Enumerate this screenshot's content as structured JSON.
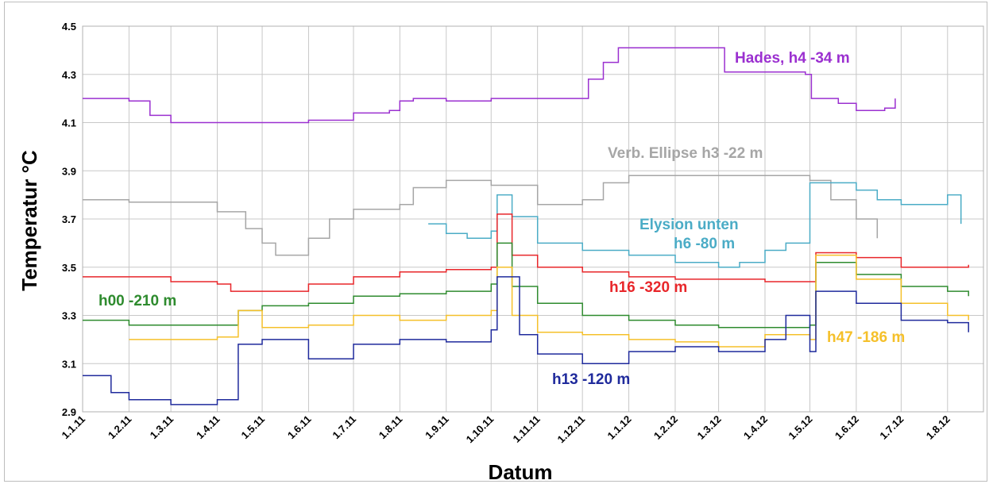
{
  "chart_data": {
    "type": "line",
    "xlabel": "Datum",
    "ylabel": "Temperatur °C",
    "ylim": [
      2.9,
      4.5
    ],
    "yticks": [
      "2.9",
      "3.1",
      "3.3",
      "3.5",
      "3.7",
      "3.9",
      "4.1",
      "4.3",
      "4.5"
    ],
    "xticks": [
      "1.1.11",
      "1.2.11",
      "1.3.11",
      "1.4.11",
      "1.5.11",
      "1.6.11",
      "1.7.11",
      "1.8.11",
      "1.9.11",
      "1.10.11",
      "1.11.11",
      "1.12.11",
      "1.1.12",
      "1.2.12",
      "1.3.12",
      "1.4.12",
      "1.5.12",
      "1.6.12",
      "1.7.12",
      "1.8.12"
    ],
    "grid": true,
    "series": [
      {
        "label": "Hades, h4 -34 m",
        "color": "#9b30d0",
        "points": [
          [
            "1.1.11",
            4.2
          ],
          [
            "15.1.11",
            4.2
          ],
          [
            "1.2.11",
            4.19
          ],
          [
            "15.2.11",
            4.13
          ],
          [
            "1.3.11",
            4.1
          ],
          [
            "1.4.11",
            4.1
          ],
          [
            "1.5.11",
            4.1
          ],
          [
            "1.6.11",
            4.11
          ],
          [
            "1.7.11",
            4.14
          ],
          [
            "25.7.11",
            4.15
          ],
          [
            "1.8.11",
            4.19
          ],
          [
            "10.8.11",
            4.2
          ],
          [
            "1.9.11",
            4.19
          ],
          [
            "1.10.11",
            4.2
          ],
          [
            "1.11.11",
            4.2
          ],
          [
            "1.12.11",
            4.2
          ],
          [
            "5.12.11",
            4.28
          ],
          [
            "15.12.11",
            4.35
          ],
          [
            "25.12.11",
            4.41
          ],
          [
            "1.1.12",
            4.41
          ],
          [
            "1.2.12",
            4.41
          ],
          [
            "1.3.12",
            4.41
          ],
          [
            "5.3.12",
            4.31
          ],
          [
            "1.4.12",
            4.31
          ],
          [
            "28.4.12",
            4.3
          ],
          [
            "2.5.12",
            4.2
          ],
          [
            "20.5.12",
            4.18
          ],
          [
            "1.6.12",
            4.15
          ],
          [
            "20.6.12",
            4.16
          ],
          [
            "27.6.12",
            4.2
          ]
        ]
      },
      {
        "label": "Verb. Ellipse h3 -22 m",
        "color": "#a6a6a6",
        "points": [
          [
            "1.1.11",
            3.78
          ],
          [
            "1.2.11",
            3.77
          ],
          [
            "1.3.11",
            3.77
          ],
          [
            "1.4.11",
            3.73
          ],
          [
            "20.4.11",
            3.66
          ],
          [
            "1.5.11",
            3.6
          ],
          [
            "10.5.11",
            3.55
          ],
          [
            "1.6.11",
            3.62
          ],
          [
            "15.6.11",
            3.7
          ],
          [
            "1.7.11",
            3.74
          ],
          [
            "1.8.11",
            3.76
          ],
          [
            "10.8.11",
            3.83
          ],
          [
            "1.9.11",
            3.86
          ],
          [
            "1.10.11",
            3.84
          ],
          [
            "1.11.11",
            3.76
          ],
          [
            "20.11.11",
            3.76
          ],
          [
            "1.12.11",
            3.78
          ],
          [
            "15.12.11",
            3.85
          ],
          [
            "1.1.12",
            3.88
          ],
          [
            "1.2.12",
            3.88
          ],
          [
            "1.3.12",
            3.88
          ],
          [
            "1.4.12",
            3.88
          ],
          [
            "1.5.12",
            3.86
          ],
          [
            "15.5.12",
            3.78
          ],
          [
            "1.6.12",
            3.7
          ],
          [
            "15.6.12",
            3.62
          ]
        ]
      },
      {
        "label": "Elysion unten h6 -80 m",
        "color": "#4bacc6",
        "points": [
          [
            "20.8.11",
            3.68
          ],
          [
            "1.9.11",
            3.64
          ],
          [
            "15.9.11",
            3.62
          ],
          [
            "1.10.11",
            3.65
          ],
          [
            "5.10.11",
            3.8
          ],
          [
            "15.10.11",
            3.71
          ],
          [
            "1.11.11",
            3.6
          ],
          [
            "1.12.11",
            3.57
          ],
          [
            "1.1.12",
            3.55
          ],
          [
            "1.2.12",
            3.52
          ],
          [
            "1.3.12",
            3.5
          ],
          [
            "15.3.12",
            3.52
          ],
          [
            "1.4.12",
            3.57
          ],
          [
            "15.4.12",
            3.6
          ],
          [
            "1.5.12",
            3.85
          ],
          [
            "1.6.12",
            3.82
          ],
          [
            "15.6.12",
            3.78
          ],
          [
            "1.7.12",
            3.76
          ],
          [
            "1.8.12",
            3.8
          ],
          [
            "10.8.12",
            3.68
          ]
        ]
      },
      {
        "label": "h16 -320 m",
        "color": "#e8262a",
        "points": [
          [
            "1.1.11",
            3.46
          ],
          [
            "1.3.11",
            3.44
          ],
          [
            "1.4.11",
            3.43
          ],
          [
            "10.4.11",
            3.4
          ],
          [
            "1.5.11",
            3.4
          ],
          [
            "1.6.11",
            3.43
          ],
          [
            "1.7.11",
            3.46
          ],
          [
            "1.8.11",
            3.48
          ],
          [
            "1.9.11",
            3.49
          ],
          [
            "1.10.11",
            3.5
          ],
          [
            "5.10.11",
            3.72
          ],
          [
            "15.10.11",
            3.55
          ],
          [
            "1.11.11",
            3.5
          ],
          [
            "1.12.11",
            3.48
          ],
          [
            "1.1.12",
            3.46
          ],
          [
            "1.2.12",
            3.45
          ],
          [
            "1.3.12",
            3.45
          ],
          [
            "1.4.12",
            3.44
          ],
          [
            "1.5.12",
            3.44
          ],
          [
            "5.5.12",
            3.56
          ],
          [
            "1.6.12",
            3.54
          ],
          [
            "1.7.12",
            3.5
          ],
          [
            "1.8.12",
            3.5
          ],
          [
            "15.8.12",
            3.51
          ]
        ]
      },
      {
        "label": "h00 -210 m",
        "color": "#2e8b2e",
        "points": [
          [
            "1.1.11",
            3.28
          ],
          [
            "1.2.11",
            3.26
          ],
          [
            "1.3.11",
            3.26
          ],
          [
            "1.4.11",
            3.26
          ],
          [
            "15.4.11",
            3.32
          ],
          [
            "1.5.11",
            3.34
          ],
          [
            "1.6.11",
            3.35
          ],
          [
            "1.7.11",
            3.38
          ],
          [
            "1.8.11",
            3.39
          ],
          [
            "1.9.11",
            3.4
          ],
          [
            "1.10.11",
            3.43
          ],
          [
            "5.10.11",
            3.6
          ],
          [
            "15.10.11",
            3.42
          ],
          [
            "1.11.11",
            3.35
          ],
          [
            "1.12.11",
            3.3
          ],
          [
            "1.1.12",
            3.28
          ],
          [
            "1.2.12",
            3.26
          ],
          [
            "1.3.12",
            3.25
          ],
          [
            "1.4.12",
            3.25
          ],
          [
            "1.5.12",
            3.26
          ],
          [
            "5.5.12",
            3.52
          ],
          [
            "1.6.12",
            3.47
          ],
          [
            "1.7.12",
            3.42
          ],
          [
            "1.8.12",
            3.4
          ],
          [
            "15.8.12",
            3.38
          ]
        ]
      },
      {
        "label": "h47 -186 m",
        "color": "#f5c02a",
        "points": [
          [
            "1.2.11",
            3.2
          ],
          [
            "1.3.11",
            3.2
          ],
          [
            "1.4.11",
            3.21
          ],
          [
            "15.4.11",
            3.32
          ],
          [
            "1.5.11",
            3.25
          ],
          [
            "1.6.11",
            3.26
          ],
          [
            "1.7.11",
            3.3
          ],
          [
            "1.8.11",
            3.28
          ],
          [
            "1.9.11",
            3.3
          ],
          [
            "1.10.11",
            3.32
          ],
          [
            "5.10.11",
            3.5
          ],
          [
            "15.10.11",
            3.3
          ],
          [
            "1.11.11",
            3.23
          ],
          [
            "1.12.11",
            3.22
          ],
          [
            "1.1.12",
            3.2
          ],
          [
            "1.2.12",
            3.19
          ],
          [
            "1.3.12",
            3.17
          ],
          [
            "1.4.12",
            3.22
          ],
          [
            "1.5.12",
            3.2
          ],
          [
            "5.5.12",
            3.55
          ],
          [
            "1.6.12",
            3.45
          ],
          [
            "1.7.12",
            3.35
          ],
          [
            "1.8.12",
            3.3
          ],
          [
            "15.8.12",
            3.28
          ]
        ]
      },
      {
        "label": "h13 -120 m",
        "color": "#1f2a9c",
        "points": [
          [
            "1.1.11",
            3.05
          ],
          [
            "15.1.11",
            3.05
          ],
          [
            "20.1.11",
            2.98
          ],
          [
            "1.2.11",
            2.95
          ],
          [
            "1.3.11",
            2.93
          ],
          [
            "1.4.11",
            2.95
          ],
          [
            "15.4.11",
            3.18
          ],
          [
            "1.5.11",
            3.2
          ],
          [
            "1.6.11",
            3.12
          ],
          [
            "1.7.11",
            3.18
          ],
          [
            "1.8.11",
            3.2
          ],
          [
            "1.9.11",
            3.19
          ],
          [
            "1.10.11",
            3.24
          ],
          [
            "5.10.11",
            3.46
          ],
          [
            "20.10.11",
            3.22
          ],
          [
            "1.11.11",
            3.14
          ],
          [
            "1.12.11",
            3.1
          ],
          [
            "1.1.12",
            3.15
          ],
          [
            "1.2.12",
            3.17
          ],
          [
            "1.3.12",
            3.15
          ],
          [
            "1.4.12",
            3.2
          ],
          [
            "15.4.12",
            3.3
          ],
          [
            "1.5.12",
            3.15
          ],
          [
            "5.5.12",
            3.4
          ],
          [
            "1.6.12",
            3.35
          ],
          [
            "1.7.12",
            3.28
          ],
          [
            "1.8.12",
            3.27
          ],
          [
            "15.8.12",
            3.23
          ]
        ]
      }
    ]
  }
}
